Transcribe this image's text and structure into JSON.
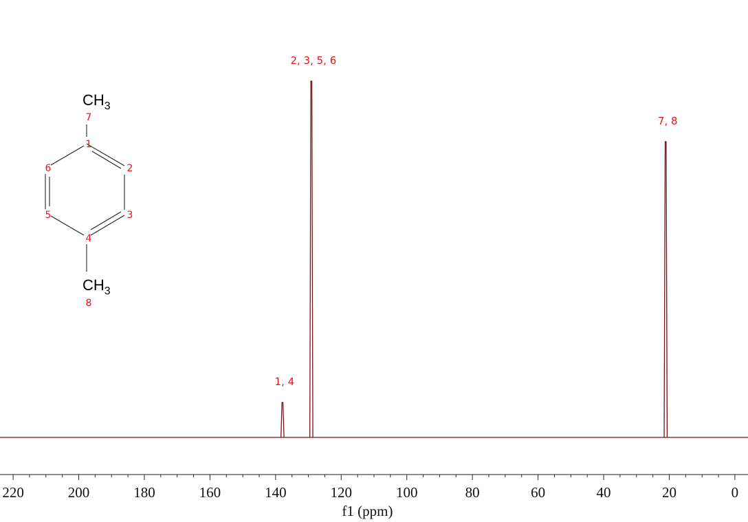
{
  "chart_data": {
    "type": "line",
    "xlabel": "f1 (ppm)",
    "xlim": [
      224,
      -4
    ],
    "x_reversed": true,
    "x_ticks": [
      220,
      200,
      180,
      160,
      140,
      120,
      100,
      80,
      60,
      40,
      20,
      0
    ],
    "grid": false,
    "peaks": [
      {
        "x": 137.9,
        "height": 0.098,
        "label": "1, 4"
      },
      {
        "x": 129.1,
        "height": 1.0,
        "label": "2, 3, 5, 6"
      },
      {
        "x": 21.1,
        "height": 0.83,
        "label": "7, 8"
      }
    ]
  },
  "molecule": {
    "top_group": {
      "main": "CH",
      "sub": "3"
    },
    "bottom_group": {
      "main": "CH",
      "sub": "3"
    },
    "atom_labels": {
      "a1": "1",
      "a2": "2",
      "a3": "3",
      "a4": "4",
      "a5": "5",
      "a6": "6",
      "a7": "7",
      "a8": "8"
    }
  },
  "colors": {
    "spectrum": "#7a1010",
    "annotation": "#e8141a",
    "axis": "#222222",
    "bond": "#222222"
  }
}
